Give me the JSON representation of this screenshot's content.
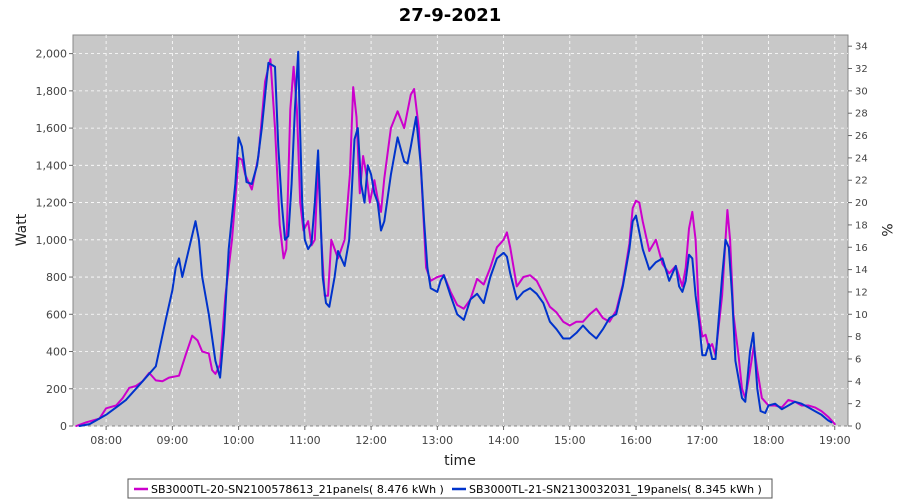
{
  "chart_data": {
    "type": "line",
    "title": "27-9-2021",
    "xlabel": "time",
    "ylabel": "Watt",
    "y2label": "%",
    "xlim": [
      7.5,
      19.2
    ],
    "ylim": [
      0,
      2100
    ],
    "y2lim": [
      0,
      35
    ],
    "x_ticks": [
      8,
      9,
      10,
      11,
      12,
      13,
      14,
      15,
      16,
      17,
      18,
      19
    ],
    "x_tick_labels": [
      "08:00",
      "09:00",
      "10:00",
      "11:00",
      "12:00",
      "13:00",
      "14:00",
      "15:00",
      "16:00",
      "17:00",
      "18:00",
      "19:00"
    ],
    "y_ticks": [
      0,
      200,
      400,
      600,
      800,
      1000,
      1200,
      1400,
      1600,
      1800,
      2000
    ],
    "y_tick_labels": [
      "0",
      "200",
      "400",
      "600",
      "800",
      "1,000",
      "1,200",
      "1,400",
      "1,600",
      "1,800",
      "2,000"
    ],
    "y2_ticks": [
      0,
      2,
      4,
      6,
      8,
      10,
      12,
      14,
      16,
      18,
      20,
      22,
      24,
      26,
      28,
      30,
      32,
      34
    ],
    "y2_tick_labels": [
      "0",
      "2",
      "4",
      "6",
      "8",
      "10",
      "12",
      "14",
      "16",
      "18",
      "20",
      "22",
      "24",
      "26",
      "28",
      "30",
      "32",
      "34"
    ],
    "grid": true,
    "legend_position": "bottom",
    "series": [
      {
        "name": "SB3000TL-20-SN2100578613_21panels( 8.476 kWh )",
        "color": "#cc00cc",
        "points": [
          [
            7.55,
            0
          ],
          [
            7.7,
            20
          ],
          [
            7.9,
            40
          ],
          [
            8.0,
            95
          ],
          [
            8.15,
            110
          ],
          [
            8.25,
            150
          ],
          [
            8.35,
            205
          ],
          [
            8.45,
            215
          ],
          [
            8.55,
            240
          ],
          [
            8.65,
            285
          ],
          [
            8.75,
            245
          ],
          [
            8.85,
            240
          ],
          [
            8.95,
            260
          ],
          [
            9.1,
            270
          ],
          [
            9.2,
            380
          ],
          [
            9.3,
            485
          ],
          [
            9.38,
            460
          ],
          [
            9.45,
            400
          ],
          [
            9.55,
            390
          ],
          [
            9.6,
            300
          ],
          [
            9.65,
            280
          ],
          [
            9.72,
            330
          ],
          [
            9.8,
            700
          ],
          [
            9.9,
            1000
          ],
          [
            10.0,
            1440
          ],
          [
            10.05,
            1430
          ],
          [
            10.1,
            1350
          ],
          [
            10.2,
            1270
          ],
          [
            10.3,
            1450
          ],
          [
            10.4,
            1850
          ],
          [
            10.48,
            1970
          ],
          [
            10.55,
            1600
          ],
          [
            10.62,
            1080
          ],
          [
            10.68,
            900
          ],
          [
            10.72,
            950
          ],
          [
            10.78,
            1700
          ],
          [
            10.83,
            1930
          ],
          [
            10.88,
            1700
          ],
          [
            10.93,
            1200
          ],
          [
            10.98,
            1050
          ],
          [
            11.05,
            1100
          ],
          [
            11.1,
            970
          ],
          [
            11.15,
            1000
          ],
          [
            11.2,
            1400
          ],
          [
            11.25,
            1000
          ],
          [
            11.3,
            700
          ],
          [
            11.35,
            700
          ],
          [
            11.4,
            1000
          ],
          [
            11.5,
            900
          ],
          [
            11.6,
            1000
          ],
          [
            11.68,
            1350
          ],
          [
            11.73,
            1820
          ],
          [
            11.78,
            1660
          ],
          [
            11.83,
            1250
          ],
          [
            11.88,
            1450
          ],
          [
            11.93,
            1350
          ],
          [
            11.98,
            1200
          ],
          [
            12.05,
            1320
          ],
          [
            12.1,
            1220
          ],
          [
            12.15,
            1150
          ],
          [
            12.2,
            1330
          ],
          [
            12.3,
            1600
          ],
          [
            12.4,
            1690
          ],
          [
            12.5,
            1600
          ],
          [
            12.6,
            1780
          ],
          [
            12.65,
            1810
          ],
          [
            12.72,
            1600
          ],
          [
            12.78,
            1200
          ],
          [
            12.83,
            850
          ],
          [
            12.9,
            780
          ],
          [
            13.0,
            800
          ],
          [
            13.1,
            810
          ],
          [
            13.2,
            720
          ],
          [
            13.3,
            650
          ],
          [
            13.4,
            630
          ],
          [
            13.5,
            680
          ],
          [
            13.6,
            790
          ],
          [
            13.7,
            760
          ],
          [
            13.8,
            850
          ],
          [
            13.9,
            960
          ],
          [
            14.0,
            1000
          ],
          [
            14.05,
            1040
          ],
          [
            14.1,
            960
          ],
          [
            14.2,
            750
          ],
          [
            14.3,
            800
          ],
          [
            14.4,
            810
          ],
          [
            14.5,
            780
          ],
          [
            14.6,
            710
          ],
          [
            14.7,
            640
          ],
          [
            14.8,
            610
          ],
          [
            14.9,
            560
          ],
          [
            15.0,
            540
          ],
          [
            15.1,
            560
          ],
          [
            15.2,
            560
          ],
          [
            15.3,
            600
          ],
          [
            15.4,
            630
          ],
          [
            15.5,
            580
          ],
          [
            15.6,
            560
          ],
          [
            15.7,
            620
          ],
          [
            15.8,
            760
          ],
          [
            15.9,
            980
          ],
          [
            15.95,
            1170
          ],
          [
            16.0,
            1210
          ],
          [
            16.05,
            1200
          ],
          [
            16.1,
            1100
          ],
          [
            16.2,
            940
          ],
          [
            16.3,
            1000
          ],
          [
            16.4,
            870
          ],
          [
            16.5,
            820
          ],
          [
            16.6,
            860
          ],
          [
            16.7,
            750
          ],
          [
            16.75,
            850
          ],
          [
            16.8,
            1060
          ],
          [
            16.85,
            1150
          ],
          [
            16.9,
            1000
          ],
          [
            16.95,
            600
          ],
          [
            17.0,
            480
          ],
          [
            17.05,
            490
          ],
          [
            17.1,
            420
          ],
          [
            17.15,
            440
          ],
          [
            17.2,
            380
          ],
          [
            17.3,
            700
          ],
          [
            17.35,
            1000
          ],
          [
            17.38,
            1160
          ],
          [
            17.42,
            1000
          ],
          [
            17.47,
            600
          ],
          [
            17.55,
            370
          ],
          [
            17.6,
            200
          ],
          [
            17.65,
            150
          ],
          [
            17.7,
            250
          ],
          [
            17.78,
            430
          ],
          [
            17.83,
            300
          ],
          [
            17.9,
            150
          ],
          [
            18.0,
            110
          ],
          [
            18.1,
            110
          ],
          [
            18.2,
            100
          ],
          [
            18.3,
            140
          ],
          [
            18.4,
            130
          ],
          [
            18.5,
            110
          ],
          [
            18.6,
            110
          ],
          [
            18.7,
            100
          ],
          [
            18.8,
            80
          ],
          [
            18.9,
            50
          ],
          [
            19.0,
            10
          ]
        ]
      },
      {
        "name": "SB3000TL-21-SN2130032031_19panels( 8.345 kWh )",
        "color": "#0033cc",
        "points": [
          [
            7.6,
            0
          ],
          [
            7.75,
            10
          ],
          [
            8.0,
            60
          ],
          [
            8.15,
            100
          ],
          [
            8.3,
            140
          ],
          [
            8.45,
            200
          ],
          [
            8.6,
            260
          ],
          [
            8.75,
            320
          ],
          [
            8.9,
            570
          ],
          [
            9.0,
            730
          ],
          [
            9.05,
            850
          ],
          [
            9.1,
            900
          ],
          [
            9.15,
            800
          ],
          [
            9.25,
            950
          ],
          [
            9.35,
            1100
          ],
          [
            9.4,
            1000
          ],
          [
            9.45,
            800
          ],
          [
            9.55,
            600
          ],
          [
            9.65,
            350
          ],
          [
            9.72,
            260
          ],
          [
            9.78,
            500
          ],
          [
            9.85,
            950
          ],
          [
            9.95,
            1300
          ],
          [
            10.0,
            1550
          ],
          [
            10.05,
            1500
          ],
          [
            10.12,
            1310
          ],
          [
            10.2,
            1300
          ],
          [
            10.28,
            1400
          ],
          [
            10.35,
            1600
          ],
          [
            10.45,
            1950
          ],
          [
            10.55,
            1930
          ],
          [
            10.6,
            1500
          ],
          [
            10.65,
            1200
          ],
          [
            10.7,
            1000
          ],
          [
            10.75,
            1020
          ],
          [
            10.8,
            1300
          ],
          [
            10.85,
            1700
          ],
          [
            10.9,
            2010
          ],
          [
            10.92,
            1700
          ],
          [
            10.96,
            1200
          ],
          [
            11.0,
            1000
          ],
          [
            11.05,
            950
          ],
          [
            11.1,
            980
          ],
          [
            11.15,
            1200
          ],
          [
            11.2,
            1480
          ],
          [
            11.24,
            1100
          ],
          [
            11.27,
            800
          ],
          [
            11.32,
            660
          ],
          [
            11.37,
            640
          ],
          [
            11.45,
            800
          ],
          [
            11.5,
            940
          ],
          [
            11.6,
            860
          ],
          [
            11.67,
            1000
          ],
          [
            11.75,
            1540
          ],
          [
            11.8,
            1600
          ],
          [
            11.85,
            1300
          ],
          [
            11.9,
            1200
          ],
          [
            11.95,
            1400
          ],
          [
            12.0,
            1350
          ],
          [
            12.05,
            1250
          ],
          [
            12.1,
            1200
          ],
          [
            12.15,
            1050
          ],
          [
            12.2,
            1100
          ],
          [
            12.3,
            1350
          ],
          [
            12.4,
            1550
          ],
          [
            12.5,
            1420
          ],
          [
            12.55,
            1410
          ],
          [
            12.6,
            1500
          ],
          [
            12.68,
            1660
          ],
          [
            12.75,
            1400
          ],
          [
            12.8,
            1100
          ],
          [
            12.85,
            850
          ],
          [
            12.9,
            740
          ],
          [
            13.0,
            720
          ],
          [
            13.05,
            780
          ],
          [
            13.1,
            810
          ],
          [
            13.2,
            700
          ],
          [
            13.3,
            600
          ],
          [
            13.4,
            570
          ],
          [
            13.5,
            680
          ],
          [
            13.6,
            710
          ],
          [
            13.7,
            660
          ],
          [
            13.8,
            800
          ],
          [
            13.9,
            900
          ],
          [
            14.0,
            930
          ],
          [
            14.05,
            910
          ],
          [
            14.1,
            820
          ],
          [
            14.2,
            680
          ],
          [
            14.3,
            720
          ],
          [
            14.4,
            740
          ],
          [
            14.5,
            710
          ],
          [
            14.6,
            660
          ],
          [
            14.7,
            560
          ],
          [
            14.8,
            520
          ],
          [
            14.9,
            470
          ],
          [
            15.0,
            470
          ],
          [
            15.1,
            500
          ],
          [
            15.2,
            540
          ],
          [
            15.3,
            500
          ],
          [
            15.4,
            470
          ],
          [
            15.5,
            520
          ],
          [
            15.6,
            580
          ],
          [
            15.7,
            600
          ],
          [
            15.8,
            750
          ],
          [
            15.9,
            950
          ],
          [
            15.95,
            1100
          ],
          [
            16.0,
            1130
          ],
          [
            16.1,
            950
          ],
          [
            16.2,
            840
          ],
          [
            16.3,
            880
          ],
          [
            16.4,
            900
          ],
          [
            16.5,
            780
          ],
          [
            16.6,
            860
          ],
          [
            16.65,
            750
          ],
          [
            16.7,
            720
          ],
          [
            16.75,
            780
          ],
          [
            16.8,
            920
          ],
          [
            16.85,
            900
          ],
          [
            16.9,
            700
          ],
          [
            16.95,
            560
          ],
          [
            17.0,
            380
          ],
          [
            17.05,
            380
          ],
          [
            17.1,
            440
          ],
          [
            17.15,
            360
          ],
          [
            17.2,
            360
          ],
          [
            17.3,
            800
          ],
          [
            17.35,
            1000
          ],
          [
            17.4,
            960
          ],
          [
            17.45,
            700
          ],
          [
            17.5,
            350
          ],
          [
            17.55,
            250
          ],
          [
            17.6,
            150
          ],
          [
            17.65,
            130
          ],
          [
            17.72,
            400
          ],
          [
            17.77,
            500
          ],
          [
            17.83,
            200
          ],
          [
            17.88,
            80
          ],
          [
            17.95,
            70
          ],
          [
            18.0,
            110
          ],
          [
            18.1,
            120
          ],
          [
            18.2,
            90
          ],
          [
            18.3,
            110
          ],
          [
            18.4,
            130
          ],
          [
            18.5,
            120
          ],
          [
            18.6,
            100
          ],
          [
            18.7,
            80
          ],
          [
            18.8,
            60
          ],
          [
            18.9,
            30
          ],
          [
            18.95,
            20
          ]
        ]
      }
    ]
  }
}
